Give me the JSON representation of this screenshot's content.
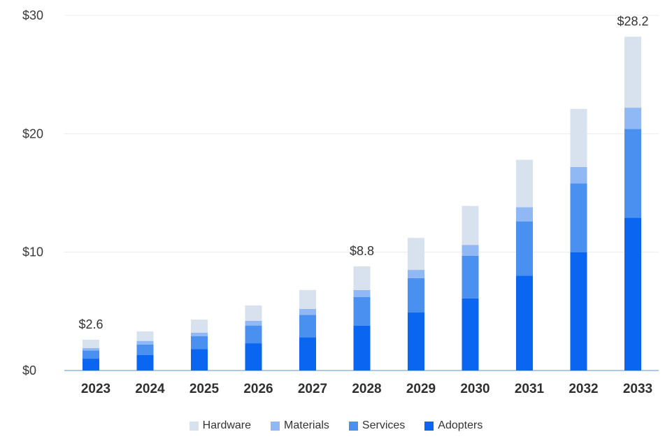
{
  "chart_data": {
    "type": "bar",
    "stacked": true,
    "categories": [
      "2023",
      "2024",
      "2025",
      "2026",
      "2027",
      "2028",
      "2029",
      "2030",
      "2031",
      "2032",
      "2033"
    ],
    "series": [
      {
        "name": "Adopters",
        "color": "#0a66f0",
        "values": [
          1.0,
          1.3,
          1.8,
          2.3,
          2.8,
          3.8,
          4.9,
          6.1,
          8.0,
          10.0,
          12.9
        ]
      },
      {
        "name": "Services",
        "color": "#4a90f0",
        "values": [
          0.7,
          0.9,
          1.1,
          1.5,
          1.9,
          2.4,
          2.9,
          3.6,
          4.6,
          5.8,
          7.5
        ]
      },
      {
        "name": "Materials",
        "color": "#8fb8f5",
        "values": [
          0.2,
          0.3,
          0.3,
          0.4,
          0.5,
          0.6,
          0.7,
          0.9,
          1.2,
          1.4,
          1.8
        ]
      },
      {
        "name": "Hardware",
        "color": "#d8e1ee",
        "values": [
          0.7,
          0.8,
          1.1,
          1.3,
          1.6,
          2.0,
          2.7,
          3.3,
          4.0,
          4.9,
          6.0
        ]
      }
    ],
    "ylim": [
      0,
      30
    ],
    "yticks": [
      0,
      10,
      20,
      30
    ],
    "ytick_labels": [
      "$0",
      "$10",
      "$20",
      "$30"
    ],
    "data_labels": [
      {
        "category": "2023",
        "text": "$2.6",
        "value": 2.6
      },
      {
        "category": "2028",
        "text": "$8.8",
        "value": 8.8
      },
      {
        "category": "2033",
        "text": "$28.2",
        "value": 28.2
      }
    ],
    "legend": {
      "position": "bottom-center",
      "order": [
        "Hardware",
        "Materials",
        "Services",
        "Adopters"
      ]
    },
    "grid": true
  }
}
